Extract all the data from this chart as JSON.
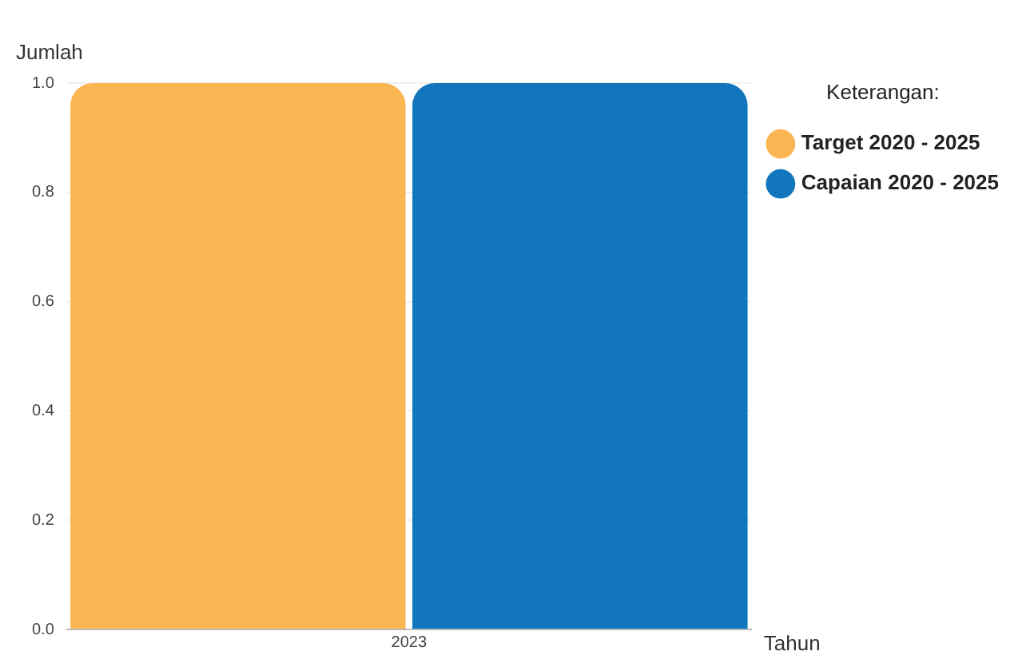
{
  "chart_data": {
    "type": "bar",
    "xlabel": "Tahun",
    "ylabel": "Jumlah",
    "legend_title": "Keterangan:",
    "categories": [
      "2023"
    ],
    "series": [
      {
        "name": "Target 2020 - 2025",
        "color": "#fbb653",
        "values": [
          1.0
        ]
      },
      {
        "name": "Capaian 2020 - 2025",
        "color": "#1176bb",
        "values": [
          1.0
        ]
      }
    ],
    "ylim": [
      0,
      1.0
    ],
    "yticks": [
      {
        "value": 0,
        "label": "0.0"
      },
      {
        "value": 0.2,
        "label": "0.2"
      },
      {
        "value": 0.4,
        "label": "0.4"
      },
      {
        "value": 0.6,
        "label": "0.6"
      },
      {
        "value": 0.8,
        "label": "0.8"
      },
      {
        "value": 1.0,
        "label": "1.0"
      }
    ],
    "grid": "y",
    "legend": "top right"
  }
}
